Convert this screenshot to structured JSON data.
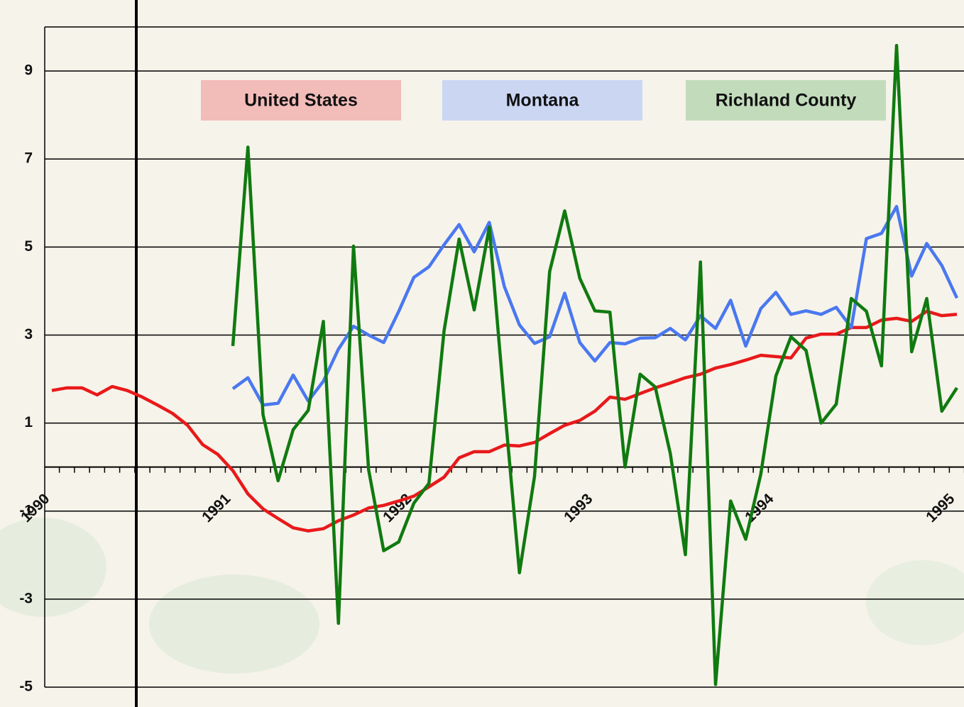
{
  "chart_data": {
    "type": "line",
    "categories": [
      "1990",
      null,
      null,
      null,
      null,
      null,
      null,
      null,
      null,
      null,
      null,
      null,
      "1991",
      null,
      null,
      null,
      null,
      null,
      null,
      null,
      null,
      null,
      null,
      null,
      "1992",
      null,
      null,
      null,
      null,
      null,
      null,
      null,
      null,
      null,
      null,
      null,
      "1993",
      null,
      null,
      null,
      null,
      null,
      null,
      null,
      null,
      null,
      null,
      null,
      "1994",
      null,
      null,
      null,
      null,
      null,
      null,
      null,
      null,
      null,
      null,
      null,
      "1995"
    ],
    "series": [
      {
        "name": "United States",
        "color": "#e8191a",
        "legend_color": "#f2b6b4",
        "values": [
          1.74,
          1.8,
          1.8,
          1.64,
          1.83,
          1.74,
          1.59,
          1.41,
          1.22,
          0.95,
          0.51,
          0.29,
          -0.08,
          -0.61,
          -0.95,
          -1.17,
          -1.38,
          -1.45,
          -1.4,
          -1.22,
          -1.09,
          -0.93,
          -0.87,
          -0.77,
          -0.66,
          -0.45,
          -0.23,
          0.21,
          0.35,
          0.35,
          0.5,
          0.48,
          0.56,
          0.76,
          0.95,
          1.06,
          1.27,
          1.59,
          1.54,
          1.67,
          1.8,
          1.91,
          2.03,
          2.11,
          2.25,
          2.33,
          2.43,
          2.54,
          2.51,
          2.48,
          2.93,
          3.02,
          3.02,
          3.17,
          3.17,
          3.34,
          3.38,
          3.31,
          3.54,
          3.44,
          3.47
        ]
      },
      {
        "name": "Montana",
        "color": "#4a78f0",
        "legend_color": "#c6d3f4",
        "values": [
          null,
          null,
          null,
          null,
          null,
          null,
          null,
          null,
          null,
          null,
          null,
          null,
          1.78,
          2.03,
          1.41,
          1.45,
          2.09,
          1.5,
          1.95,
          2.68,
          3.2,
          3.0,
          2.83,
          3.54,
          4.31,
          4.55,
          5.05,
          5.51,
          4.89,
          5.56,
          4.1,
          3.23,
          2.81,
          2.96,
          3.95,
          2.83,
          2.41,
          2.83,
          2.8,
          2.93,
          2.94,
          3.15,
          2.89,
          3.44,
          3.15,
          3.79,
          2.75,
          3.6,
          3.97,
          3.47,
          3.55,
          3.47,
          3.63,
          3.17,
          5.19,
          5.31,
          5.92,
          4.34,
          5.08,
          4.58,
          3.84
        ]
      },
      {
        "name": "Richland County",
        "color": "#107a10",
        "legend_color": "#bcd9b6",
        "values": [
          null,
          null,
          null,
          null,
          null,
          null,
          null,
          null,
          null,
          null,
          null,
          null,
          2.75,
          7.27,
          1.19,
          -0.31,
          0.85,
          1.29,
          3.31,
          -3.55,
          5.02,
          -0.06,
          -1.9,
          -1.7,
          -0.82,
          -0.37,
          3.09,
          5.18,
          3.57,
          5.45,
          1.43,
          -2.4,
          -0.21,
          4.44,
          5.82,
          4.29,
          3.55,
          3.52,
          0.0,
          2.11,
          1.82,
          0.31,
          -1.99,
          4.66,
          -4.94,
          -0.77,
          -1.64,
          -0.16,
          2.07,
          2.96,
          2.65,
          1.0,
          1.43,
          3.83,
          3.54,
          2.3,
          9.58,
          2.62,
          3.83,
          1.27,
          1.8
        ]
      }
    ],
    "ylim": [
      -5,
      10
    ],
    "yticks": [
      9,
      7,
      5,
      3,
      1,
      -1,
      -3,
      -5
    ],
    "grid": true
  }
}
